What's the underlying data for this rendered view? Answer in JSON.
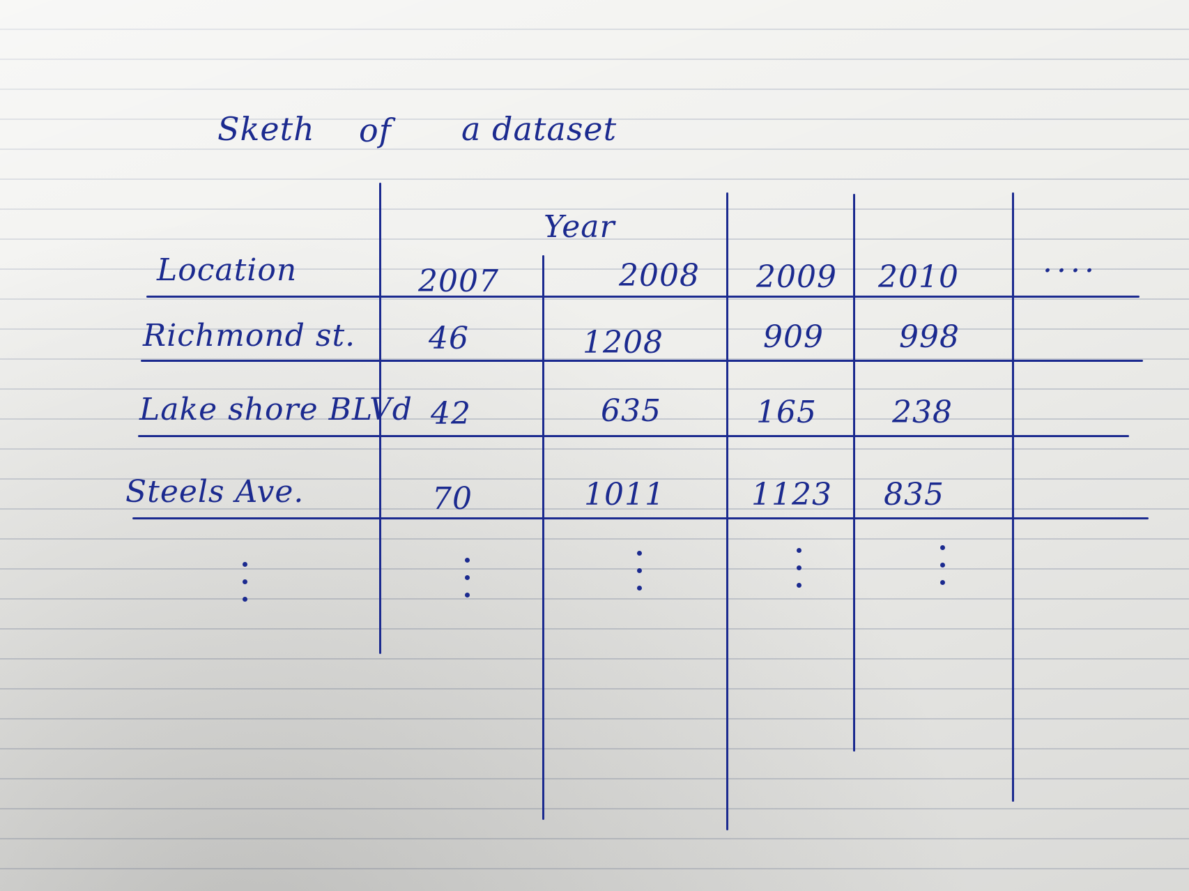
{
  "title": {
    "part1": "Sketh",
    "part2": "of",
    "part3": "a dataset"
  },
  "table": {
    "group_header": "Year",
    "row_header_label": "Location",
    "columns": [
      "2007",
      "2008",
      "2009",
      "2010"
    ],
    "more_columns": "....",
    "rows": [
      {
        "location": "Richmond st.",
        "values": [
          "46",
          "1208",
          "909",
          "998"
        ]
      },
      {
        "location": "Lake shore BLVd",
        "values": [
          "42",
          "635",
          "165",
          "238"
        ]
      },
      {
        "location": "Steels Ave.",
        "values": [
          "70",
          "1011",
          "1123",
          "835"
        ]
      }
    ]
  },
  "colors": {
    "ink": "#1b2a8f",
    "paper": "#efefec",
    "rule_lines": "#c8ccd3"
  }
}
